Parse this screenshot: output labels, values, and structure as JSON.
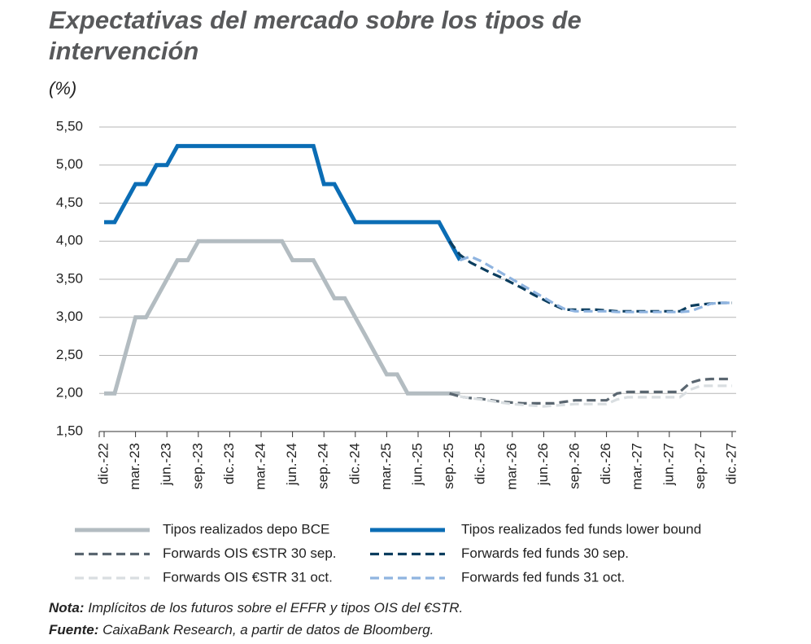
{
  "chart_data": {
    "type": "line",
    "title": "Expectativas del mercado sobre los tipos de intervención",
    "y_label": "(%)",
    "categories": [
      "dic.-22",
      null,
      null,
      "mar.-23",
      null,
      null,
      "jun.-23",
      null,
      null,
      "sep.-23",
      null,
      null,
      "dic.-23",
      null,
      null,
      "mar.-24",
      null,
      null,
      "jun.-24",
      null,
      null,
      "sep.-24",
      null,
      null,
      "dic.-24",
      null,
      null,
      "mar.-25",
      null,
      null,
      "jun.-25",
      null,
      null,
      "sep.-25",
      null,
      null,
      "dic.-25",
      null,
      null,
      "mar.-26",
      null,
      null,
      "jun.-26",
      null,
      null,
      "sep.-26",
      null,
      null,
      "dic.-26",
      null,
      null,
      "mar.-27",
      null,
      null,
      "jun.-27",
      null,
      null,
      "sep.-27",
      null,
      null,
      "dic.-27"
    ],
    "ylim": [
      1.5,
      5.5
    ],
    "yticks": [
      {
        "value": 1.5,
        "label": "1,50"
      },
      {
        "value": 2,
        "label": "2,00"
      },
      {
        "value": 2.5,
        "label": "2,50"
      },
      {
        "value": 3,
        "label": "3,00"
      },
      {
        "value": 3.5,
        "label": "3,50"
      },
      {
        "value": 4,
        "label": "4,00"
      },
      {
        "value": 4.5,
        "label": "4,50"
      },
      {
        "value": 5,
        "label": "5,00"
      },
      {
        "value": 5.5,
        "label": "5,50"
      }
    ],
    "grid": true,
    "series": [
      {
        "name": "Tipos realizados depo BCE",
        "color": "#b3bcc1",
        "dashed": false,
        "values": [
          2,
          2,
          2.5,
          3,
          3,
          3.25,
          3.5,
          3.75,
          3.75,
          4,
          4,
          4,
          4,
          4,
          4,
          4,
          4,
          4,
          3.75,
          3.75,
          3.75,
          3.5,
          3.25,
          3.25,
          3,
          2.75,
          2.5,
          2.25,
          2.25,
          2,
          2,
          2,
          2,
          2,
          2,
          null,
          null,
          null,
          null,
          null,
          null,
          null,
          null,
          null,
          null,
          null,
          null,
          null,
          null,
          null,
          null,
          null,
          null,
          null,
          null,
          null,
          null,
          null,
          null,
          null,
          null
        ]
      },
      {
        "name": "Tipos realizados fed funds lower bound",
        "color": "#0b6db5",
        "dashed": false,
        "values": [
          4.25,
          4.25,
          4.5,
          4.75,
          4.75,
          5,
          5,
          5.25,
          5.25,
          5.25,
          5.25,
          5.25,
          5.25,
          5.25,
          5.25,
          5.25,
          5.25,
          5.25,
          5.25,
          5.25,
          5.25,
          4.75,
          4.75,
          4.5,
          4.25,
          4.25,
          4.25,
          4.25,
          4.25,
          4.25,
          4.25,
          4.25,
          4.25,
          4,
          3.75,
          null,
          null,
          null,
          null,
          null,
          null,
          null,
          null,
          null,
          null,
          null,
          null,
          null,
          null,
          null,
          null,
          null,
          null,
          null,
          null,
          null,
          null,
          null,
          null,
          null,
          null
        ]
      },
      {
        "name": "Forwards OIS €STR 30 sep.",
        "color": "#5a6670",
        "dashed": true,
        "values": [
          null,
          null,
          null,
          null,
          null,
          null,
          null,
          null,
          null,
          null,
          null,
          null,
          null,
          null,
          null,
          null,
          null,
          null,
          null,
          null,
          null,
          null,
          null,
          null,
          null,
          null,
          null,
          null,
          null,
          null,
          null,
          null,
          null,
          2,
          1.96,
          1.94,
          1.93,
          1.91,
          1.89,
          1.88,
          1.87,
          1.87,
          1.87,
          1.87,
          1.89,
          1.91,
          1.91,
          1.91,
          1.91,
          2,
          2.02,
          2.02,
          2.02,
          2.02,
          2.02,
          2.02,
          2.14,
          2.18,
          2.19,
          2.19,
          2.19
        ]
      },
      {
        "name": "Forwards fed funds 30 sep.",
        "color": "#0b3d5e",
        "dashed": true,
        "values": [
          null,
          null,
          null,
          null,
          null,
          null,
          null,
          null,
          null,
          null,
          null,
          null,
          null,
          null,
          null,
          null,
          null,
          null,
          null,
          null,
          null,
          null,
          null,
          null,
          null,
          null,
          null,
          null,
          null,
          null,
          null,
          null,
          null,
          4,
          3.82,
          3.72,
          3.65,
          3.58,
          3.52,
          3.45,
          3.38,
          3.3,
          3.23,
          3.16,
          3.1,
          3.1,
          3.1,
          3.1,
          3.09,
          3.08,
          3.08,
          3.08,
          3.08,
          3.08,
          3.08,
          3.08,
          3.15,
          3.17,
          3.18,
          3.19,
          3.19
        ]
      },
      {
        "name": "Forwards OIS €STR 31 oct.",
        "color": "#d9dee1",
        "dashed": true,
        "values": [
          null,
          null,
          null,
          null,
          null,
          null,
          null,
          null,
          null,
          null,
          null,
          null,
          null,
          null,
          null,
          null,
          null,
          null,
          null,
          null,
          null,
          null,
          null,
          null,
          null,
          null,
          null,
          null,
          null,
          null,
          null,
          null,
          null,
          null,
          1.96,
          1.94,
          1.92,
          1.9,
          1.88,
          1.86,
          1.85,
          1.84,
          1.83,
          1.84,
          1.85,
          1.86,
          1.86,
          1.86,
          1.86,
          1.92,
          1.95,
          1.95,
          1.95,
          1.95,
          1.95,
          1.95,
          2.05,
          2.1,
          2.1,
          2.1,
          2.1
        ]
      },
      {
        "name": "Forwards fed funds 31 oct.",
        "color": "#8fb4e0",
        "dashed": true,
        "values": [
          null,
          null,
          null,
          null,
          null,
          null,
          null,
          null,
          null,
          null,
          null,
          null,
          null,
          null,
          null,
          null,
          null,
          null,
          null,
          null,
          null,
          null,
          null,
          null,
          null,
          null,
          null,
          null,
          null,
          null,
          null,
          null,
          null,
          null,
          3.75,
          3.8,
          3.74,
          3.66,
          3.58,
          3.5,
          3.42,
          3.34,
          3.26,
          3.18,
          3.11,
          3.08,
          3.08,
          3.08,
          3.08,
          3.07,
          3.07,
          3.07,
          3.07,
          3.07,
          3.07,
          3.07,
          3.08,
          3.13,
          3.18,
          3.19,
          3.19
        ]
      }
    ],
    "notes": [
      {
        "label": "Nota:",
        "text": "Implícitos de los futuros sobre el EFFR y tipos OIS del €STR."
      },
      {
        "label": "Fuente:",
        "text": "CaixaBank Research, a partir de datos de Bloomberg."
      }
    ]
  }
}
